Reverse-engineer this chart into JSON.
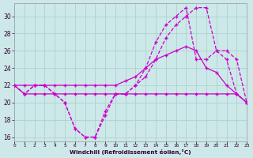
{
  "xlabel": "Windchill (Refroidissement éolien,°C)",
  "background_color": "#cce8e8",
  "grid_color": "#aacccc",
  "line_color": "#cc00cc",
  "hours": [
    0,
    1,
    2,
    3,
    4,
    5,
    6,
    7,
    8,
    9,
    10,
    11,
    12,
    13,
    14,
    15,
    16,
    17,
    18,
    19,
    20,
    21,
    22,
    23
  ],
  "series1": [
    22,
    21,
    22,
    22,
    21,
    20,
    17,
    16,
    16,
    19,
    21,
    21,
    22,
    23,
    25,
    27.5,
    29,
    30,
    31,
    31,
    26,
    26,
    25,
    20
  ],
  "series2": [
    22,
    21,
    22,
    22,
    21,
    20,
    17,
    16,
    16,
    18.5,
    21,
    21,
    22,
    24,
    27,
    29,
    30,
    31,
    25,
    25,
    26,
    25,
    21,
    20
  ],
  "series3": [
    22,
    22,
    22,
    22,
    22,
    22,
    22,
    22,
    22,
    22,
    22,
    22.5,
    23,
    24,
    25,
    25.5,
    26,
    26.5,
    26,
    24,
    23.5,
    22,
    21,
    20
  ],
  "series4": [
    22,
    21,
    21,
    21,
    21,
    21,
    21,
    21,
    21,
    21,
    21,
    21,
    21,
    21,
    21,
    21,
    21,
    21,
    21,
    21,
    21,
    21,
    21,
    20
  ],
  "ylim": [
    15.5,
    31.5
  ],
  "yticks": [
    16,
    18,
    20,
    22,
    24,
    26,
    28,
    30
  ],
  "xlim": [
    0,
    23
  ]
}
